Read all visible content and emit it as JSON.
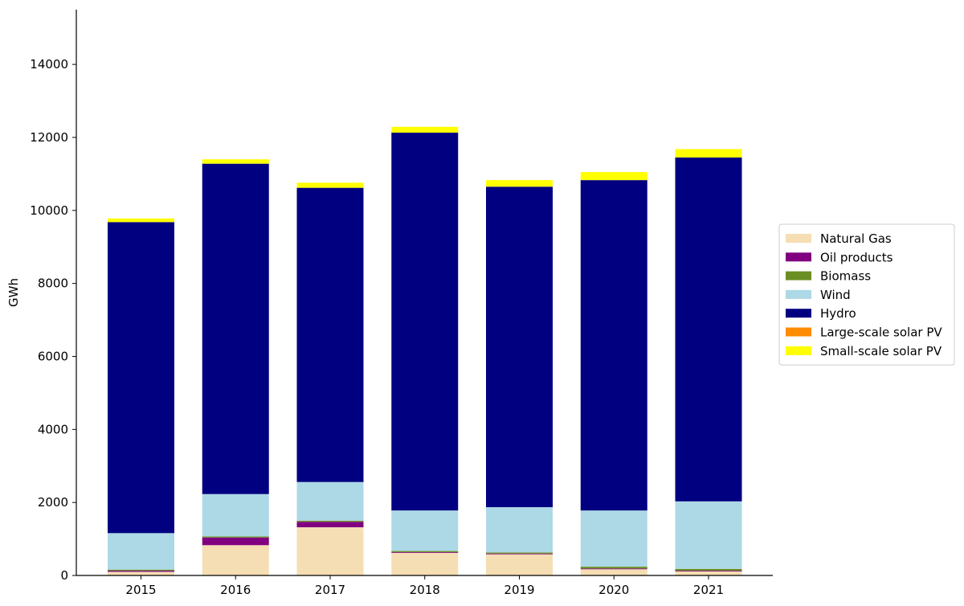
{
  "chart_data": {
    "type": "bar",
    "stacked": true,
    "ylabel": "GWh",
    "xlabel": "",
    "ylim": [
      0,
      15500
    ],
    "yticks": [
      0,
      2000,
      4000,
      6000,
      8000,
      10000,
      12000,
      14000
    ],
    "categories": [
      "2015",
      "2016",
      "2017",
      "2018",
      "2019",
      "2020",
      "2021"
    ],
    "legend_position": "right",
    "series": [
      {
        "name": "Natural Gas",
        "color": "#f5deb3",
        "values": [
          100,
          830,
          1320,
          620,
          580,
          170,
          110
        ]
      },
      {
        "name": "Oil products",
        "color": "#800080",
        "values": [
          30,
          210,
          150,
          20,
          20,
          20,
          20
        ]
      },
      {
        "name": "Biomass",
        "color": "#6b8e23",
        "values": [
          30,
          30,
          30,
          30,
          30,
          50,
          50
        ]
      },
      {
        "name": "Wind",
        "color": "#add8e6",
        "values": [
          1000,
          1160,
          1060,
          1110,
          1240,
          1540,
          1850
        ]
      },
      {
        "name": "Hydro",
        "color": "#000080",
        "values": [
          8520,
          9050,
          8060,
          10350,
          8780,
          9050,
          9420
        ]
      },
      {
        "name": "Large-scale solar PV",
        "color": "#ff8c00",
        "values": [
          0,
          0,
          0,
          0,
          0,
          0,
          0
        ]
      },
      {
        "name": "Small-scale solar PV",
        "color": "#ffff00",
        "values": [
          100,
          120,
          140,
          160,
          180,
          220,
          230
        ]
      }
    ]
  }
}
